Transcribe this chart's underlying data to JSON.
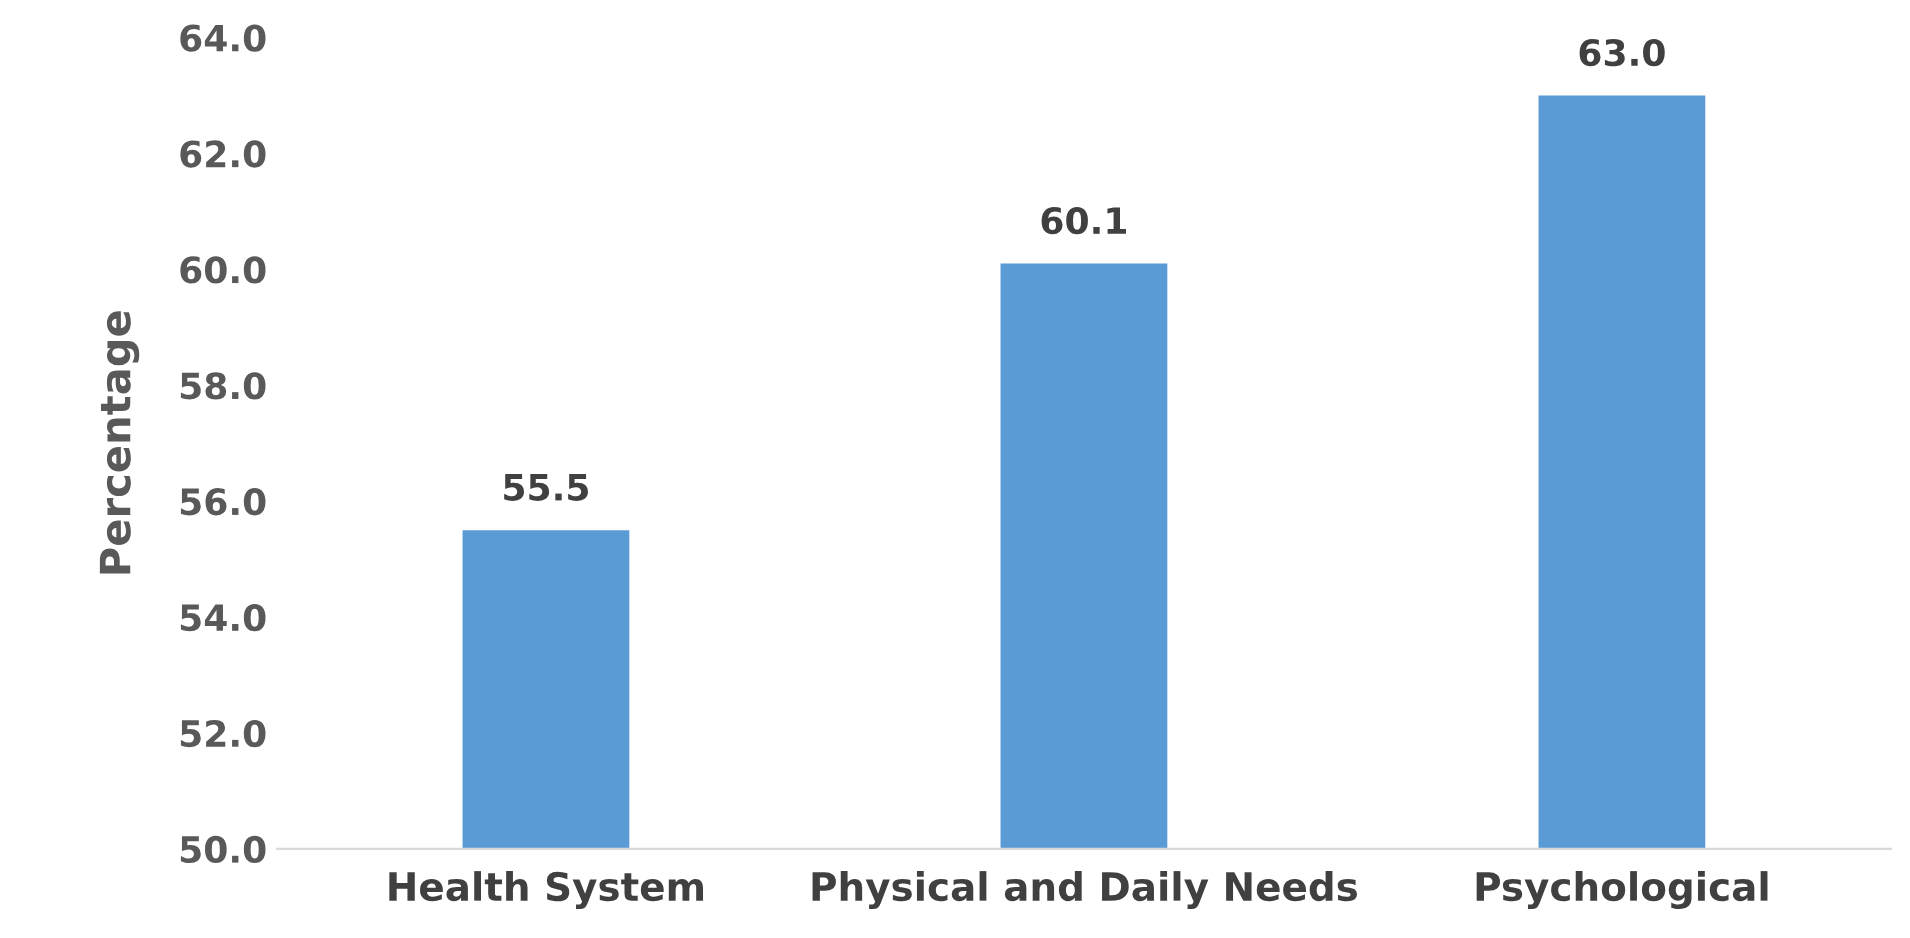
{
  "chart_data": {
    "type": "bar",
    "ylabel": "Percentage",
    "categories": [
      "Health System",
      "Physical and Daily Needs",
      "Psychological"
    ],
    "values": [
      55.5,
      60.1,
      63.0
    ],
    "color": "#5b9bd5",
    "value_labels": [
      "55.5",
      "60.1",
      "63.0"
    ],
    "ylim": [
      50,
      64
    ],
    "yticks": [
      {
        "value": 50,
        "label": "50.0"
      },
      {
        "value": 52,
        "label": "52.0"
      },
      {
        "value": 54,
        "label": "54.0"
      },
      {
        "value": 56,
        "label": "56.0"
      },
      {
        "value": 58,
        "label": "58.0"
      },
      {
        "value": 60,
        "label": "60.0"
      },
      {
        "value": 62,
        "label": "62.0"
      },
      {
        "value": 64,
        "label": "64.0"
      }
    ],
    "grid": false,
    "legend": false
  }
}
